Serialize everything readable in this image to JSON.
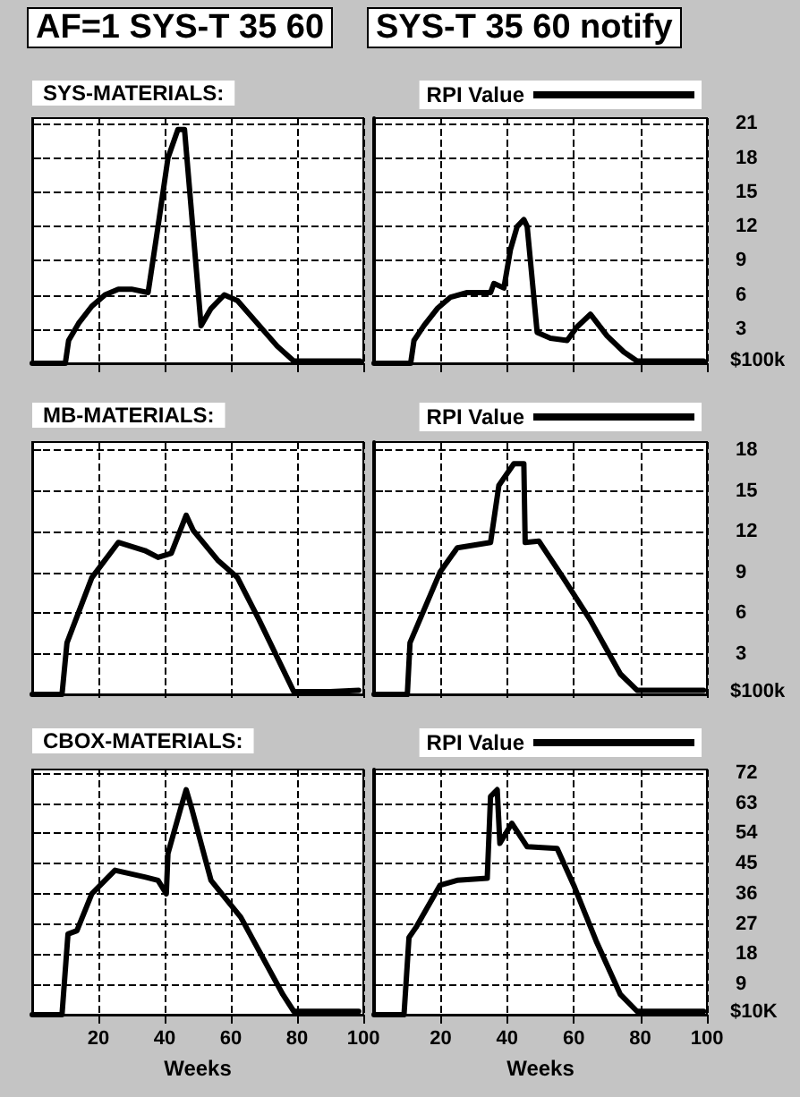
{
  "chart_data": [
    {
      "type": "line",
      "title": "AF=1 SYS-T 35 60",
      "subtitle": "SYS-MATERIALS:",
      "legend": "top right",
      "grid": true,
      "tick_labels": false,
      "xlim": [
        0,
        100
      ],
      "xticks": [
        20,
        40,
        60,
        80,
        100
      ],
      "ylim": [
        0,
        21.5
      ],
      "yticks": [
        3,
        6,
        9,
        12,
        15,
        18,
        21
      ],
      "series": [
        {
          "name": "RPI Value",
          "color": "#000000",
          "x": [
            0,
            10,
            11,
            14,
            18,
            22,
            26,
            30,
            35,
            38,
            41,
            44,
            46,
            51,
            54,
            58,
            62,
            68,
            74,
            79,
            99
          ],
          "values": [
            0,
            0,
            2,
            3.5,
            5,
            6,
            6.5,
            6.5,
            6.2,
            12,
            18,
            20.5,
            20.5,
            3.3,
            4.8,
            6,
            5.5,
            3.5,
            1.5,
            0.2,
            0.2
          ]
        }
      ]
    },
    {
      "type": "line",
      "title": "SYS-T 35 60 notify",
      "grid": true,
      "tick_labels": "y",
      "ylabel": "$100k",
      "xlim": [
        0,
        100
      ],
      "xticks": [
        20,
        40,
        60,
        80,
        100
      ],
      "ylim": [
        0,
        21.5
      ],
      "yticks": [
        3,
        6,
        9,
        12,
        15,
        18,
        21
      ],
      "series": [
        {
          "color": "#000000",
          "x": [
            0,
            11,
            12,
            15,
            19,
            23,
            28,
            35,
            36,
            39,
            41,
            43,
            45,
            46,
            49,
            53,
            58,
            61,
            65,
            70,
            75,
            79,
            99
          ],
          "values": [
            0,
            0,
            2,
            3.3,
            4.8,
            5.8,
            6.2,
            6.2,
            7,
            6.6,
            10,
            12,
            12.6,
            12,
            2.7,
            2.2,
            2,
            3.2,
            4.3,
            2.4,
            1,
            0.2,
            0.2
          ]
        }
      ]
    },
    {
      "type": "line",
      "subtitle": "MB-MATERIALS:",
      "legend": "top right",
      "grid": true,
      "tick_labels": false,
      "xlim": [
        0,
        100
      ],
      "xticks": [
        20,
        40,
        60,
        80,
        100
      ],
      "ylim": [
        0,
        18.6
      ],
      "yticks": [
        3,
        6,
        9,
        12,
        15,
        18
      ],
      "series": [
        {
          "name": "RPI Value",
          "color": "#000000",
          "x": [
            0,
            9,
            10.5,
            18,
            26,
            34,
            38,
            42,
            46.5,
            48.6,
            56,
            62,
            68.5,
            79,
            90,
            98.6
          ],
          "values": [
            0,
            0,
            3.8,
            8.6,
            11.2,
            10.6,
            10.1,
            10.4,
            13.2,
            12.1,
            9.9,
            8.6,
            5.5,
            0.2,
            0.2,
            0.3
          ]
        }
      ]
    },
    {
      "type": "line",
      "grid": true,
      "tick_labels": "y",
      "ylabel": "$100k",
      "xlim": [
        0,
        100
      ],
      "xticks": [
        20,
        40,
        60,
        80,
        100
      ],
      "ylim": [
        0,
        18.6
      ],
      "yticks": [
        3,
        6,
        9,
        12,
        15,
        18
      ],
      "series": [
        {
          "color": "#000000",
          "x": [
            0,
            10,
            10.8,
            19.8,
            25,
            35,
            37.5,
            42,
            45,
            45.4,
            49.5,
            56.8,
            64.9,
            74,
            79,
            99
          ],
          "values": [
            0,
            0,
            3.8,
            9,
            10.8,
            11.2,
            15.4,
            17,
            17,
            11.2,
            11.3,
            8.6,
            5.5,
            1.5,
            0.3,
            0.3
          ]
        }
      ]
    },
    {
      "type": "line",
      "subtitle": "CBOX-MATERIALS:",
      "legend": "top right",
      "grid": true,
      "tick_labels": "x",
      "xlabel": "Weeks",
      "xlim": [
        0,
        100
      ],
      "xticks": [
        20,
        40,
        60,
        80,
        100
      ],
      "ylim": [
        0,
        73
      ],
      "yticks": [
        9,
        18,
        27,
        36,
        45,
        54,
        63,
        72
      ],
      "series": [
        {
          "name": "RPI Value",
          "color": "#000000",
          "x": [
            0,
            9,
            10.8,
            13.5,
            18,
            25,
            34,
            38,
            40.5,
            41,
            45,
            46.5,
            48,
            54,
            63,
            75.7,
            79,
            98.6
          ],
          "values": [
            0,
            0,
            24,
            25,
            36,
            43,
            41,
            40,
            36,
            48,
            62,
            67,
            62,
            40,
            29,
            6,
            1,
            1
          ]
        }
      ]
    },
    {
      "type": "line",
      "xlabel": "Weeks",
      "ylabel": "$10K",
      "grid": true,
      "xlim": [
        0,
        100
      ],
      "xticks": [
        20,
        40,
        60,
        80,
        100
      ],
      "ylim": [
        0,
        73
      ],
      "yticks": [
        9,
        18,
        27,
        36,
        45,
        54,
        63,
        72
      ],
      "series": [
        {
          "color": "#000000",
          "x": [
            0,
            9,
            10.5,
            12.6,
            19.8,
            25,
            34,
            35,
            37,
            37.8,
            41.4,
            46,
            55,
            60,
            66.7,
            74,
            79,
            99
          ],
          "values": [
            0,
            0,
            23,
            26,
            38.5,
            40,
            40.6,
            65,
            67,
            51,
            57,
            50,
            49.5,
            38.5,
            22,
            6,
            1,
            1
          ]
        }
      ]
    }
  ]
}
